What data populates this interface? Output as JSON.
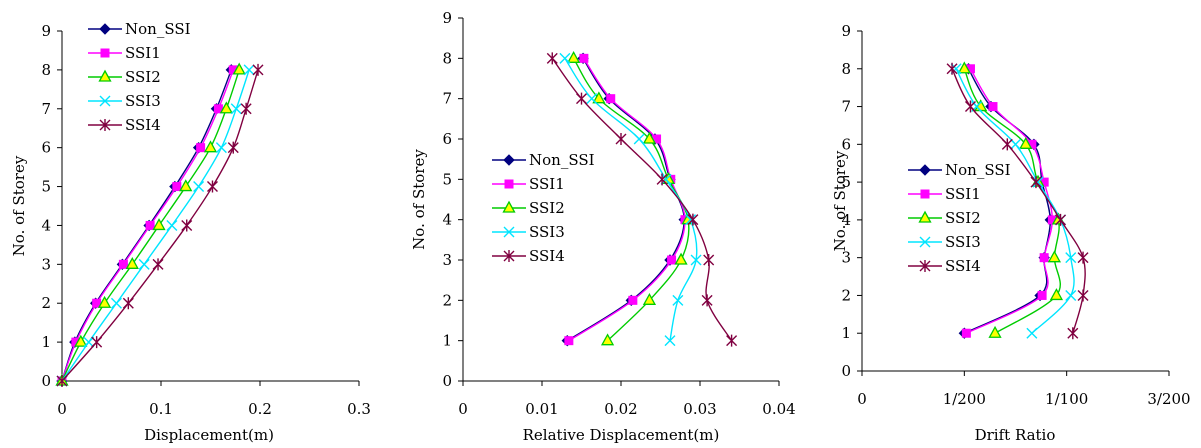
{
  "chart_data": [
    {
      "type": "line",
      "xlabel": "Displacement(m)",
      "ylabel": "No. of Storey",
      "xlim": [
        0,
        0.3
      ],
      "ylim": [
        0,
        9
      ],
      "x_ticks": [
        0,
        0.1,
        0.2,
        0.3
      ],
      "x_tick_labels": [
        "0",
        "0.1",
        "0.2",
        "0.3"
      ],
      "y_ticks": [
        0,
        1,
        2,
        3,
        4,
        5,
        6,
        7,
        8,
        9
      ],
      "y_tick_labels": [
        "0",
        "1",
        "2",
        "3",
        "4",
        "5",
        "6",
        "7",
        "8",
        "9"
      ],
      "legend_position": "top-left",
      "series": [
        {
          "name": "Non_SSI",
          "color": "#000080",
          "marker": "diamond",
          "x": [
            0,
            0.013,
            0.034,
            0.061,
            0.088,
            0.114,
            0.138,
            0.156,
            0.171
          ],
          "y": [
            0,
            1,
            2,
            3,
            4,
            5,
            6,
            7,
            8
          ]
        },
        {
          "name": "SSI1",
          "color": "#ff00ff",
          "marker": "square",
          "x": [
            0,
            0.014,
            0.035,
            0.062,
            0.089,
            0.116,
            0.14,
            0.158,
            0.173
          ],
          "y": [
            0,
            1,
            2,
            3,
            4,
            5,
            6,
            7,
            8
          ]
        },
        {
          "name": "SSI2",
          "color": "#00cc00",
          "marker": "triangle",
          "x": [
            0,
            0.019,
            0.043,
            0.071,
            0.098,
            0.125,
            0.15,
            0.166,
            0.179
          ],
          "y": [
            0,
            1,
            2,
            3,
            4,
            5,
            6,
            7,
            8
          ]
        },
        {
          "name": "SSI3",
          "color": "#00e5ff",
          "marker": "x",
          "x": [
            0,
            0.027,
            0.055,
            0.083,
            0.111,
            0.138,
            0.161,
            0.176,
            0.189
          ],
          "y": [
            0,
            1,
            2,
            3,
            4,
            5,
            6,
            7,
            8
          ]
        },
        {
          "name": "SSI4",
          "color": "#800040",
          "marker": "star",
          "x": [
            0,
            0.035,
            0.067,
            0.097,
            0.126,
            0.152,
            0.173,
            0.186,
            0.198
          ],
          "y": [
            0,
            1,
            2,
            3,
            4,
            5,
            6,
            7,
            8
          ]
        }
      ]
    },
    {
      "type": "line",
      "xlabel": "Relative Displacement(m)",
      "ylabel": "No. of Storey",
      "xlim": [
        0,
        0.04
      ],
      "ylim": [
        0,
        9
      ],
      "x_ticks": [
        0,
        0.01,
        0.02,
        0.03,
        0.04
      ],
      "x_tick_labels": [
        "0",
        "0.01",
        "0.02",
        "0.03",
        "0.04"
      ],
      "y_ticks": [
        0,
        1,
        2,
        3,
        4,
        5,
        6,
        7,
        8,
        9
      ],
      "y_tick_labels": [
        "0",
        "1",
        "2",
        "3",
        "4",
        "5",
        "6",
        "7",
        "8",
        "9"
      ],
      "legend_position": "center-left",
      "series": [
        {
          "name": "Non_SSI",
          "color": "#000080",
          "marker": "diamond",
          "x": [
            0.0132,
            0.0213,
            0.0262,
            0.028,
            0.0262,
            0.0243,
            0.0185,
            0.0152
          ],
          "y": [
            1,
            2,
            3,
            4,
            5,
            6,
            7,
            8
          ]
        },
        {
          "name": "SSI1",
          "color": "#ff00ff",
          "marker": "square",
          "x": [
            0.0134,
            0.0215,
            0.0264,
            0.0281,
            0.0263,
            0.0245,
            0.0187,
            0.0153
          ],
          "y": [
            1,
            2,
            3,
            4,
            5,
            6,
            7,
            8
          ]
        },
        {
          "name": "SSI2",
          "color": "#00cc00",
          "marker": "triangle",
          "x": [
            0.0183,
            0.0236,
            0.0276,
            0.0285,
            0.026,
            0.0236,
            0.0172,
            0.014
          ],
          "y": [
            1,
            2,
            3,
            4,
            5,
            6,
            7,
            8
          ]
        },
        {
          "name": "SSI3",
          "color": "#00e5ff",
          "marker": "x",
          "x": [
            0.0262,
            0.0272,
            0.0295,
            0.0288,
            0.0257,
            0.0223,
            0.0163,
            0.0129
          ],
          "y": [
            1,
            2,
            3,
            4,
            5,
            6,
            7,
            8
          ]
        },
        {
          "name": "SSI4",
          "color": "#800040",
          "marker": "star",
          "x": [
            0.034,
            0.0309,
            0.0311,
            0.0291,
            0.0252,
            0.02,
            0.015,
            0.0113
          ],
          "y": [
            1,
            2,
            3,
            4,
            5,
            6,
            7,
            8
          ]
        }
      ]
    },
    {
      "type": "line",
      "xlabel": "Drift Ratio",
      "ylabel": "No. of Storey",
      "xlim": [
        0,
        0.015
      ],
      "ylim": [
        0,
        9
      ],
      "x_ticks": [
        0,
        0.005,
        0.01,
        0.015
      ],
      "x_tick_labels": [
        "0",
        "1/200",
        "1/100",
        "3/200"
      ],
      "y_ticks": [
        0,
        1,
        2,
        3,
        4,
        5,
        6,
        7,
        8,
        9
      ],
      "y_tick_labels": [
        "0",
        "1",
        "2",
        "3",
        "4",
        "5",
        "6",
        "7",
        "8",
        "9"
      ],
      "legend_position": "center-left",
      "series": [
        {
          "name": "Non_SSI",
          "color": "#000080",
          "marker": "diamond",
          "x": [
            0.005,
            0.0087,
            0.0089,
            0.0092,
            0.0088,
            0.0084,
            0.0063,
            0.0052
          ],
          "y": [
            1,
            2,
            3,
            4,
            5,
            6,
            7,
            8
          ]
        },
        {
          "name": "SSI1",
          "color": "#ff00ff",
          "marker": "square",
          "x": [
            0.0051,
            0.0088,
            0.0089,
            0.0093,
            0.0089,
            0.0083,
            0.0064,
            0.0053
          ],
          "y": [
            1,
            2,
            3,
            4,
            5,
            6,
            7,
            8
          ]
        },
        {
          "name": "SSI2",
          "color": "#00cc00",
          "marker": "triangle",
          "x": [
            0.0065,
            0.0095,
            0.0094,
            0.0096,
            0.0086,
            0.008,
            0.0058,
            0.005
          ],
          "y": [
            1,
            2,
            3,
            4,
            5,
            6,
            7,
            8
          ]
        },
        {
          "name": "SSI3",
          "color": "#00e5ff",
          "marker": "x",
          "x": [
            0.0083,
            0.0102,
            0.0102,
            0.0097,
            0.0086,
            0.0075,
            0.0056,
            0.0046
          ],
          "y": [
            1,
            2,
            3,
            4,
            5,
            6,
            7,
            8
          ]
        },
        {
          "name": "SSI4",
          "color": "#800040",
          "marker": "star",
          "x": [
            0.0103,
            0.0108,
            0.0108,
            0.0097,
            0.0085,
            0.0071,
            0.0053,
            0.0044
          ],
          "y": [
            1,
            2,
            3,
            4,
            5,
            6,
            7,
            8
          ]
        }
      ]
    }
  ]
}
